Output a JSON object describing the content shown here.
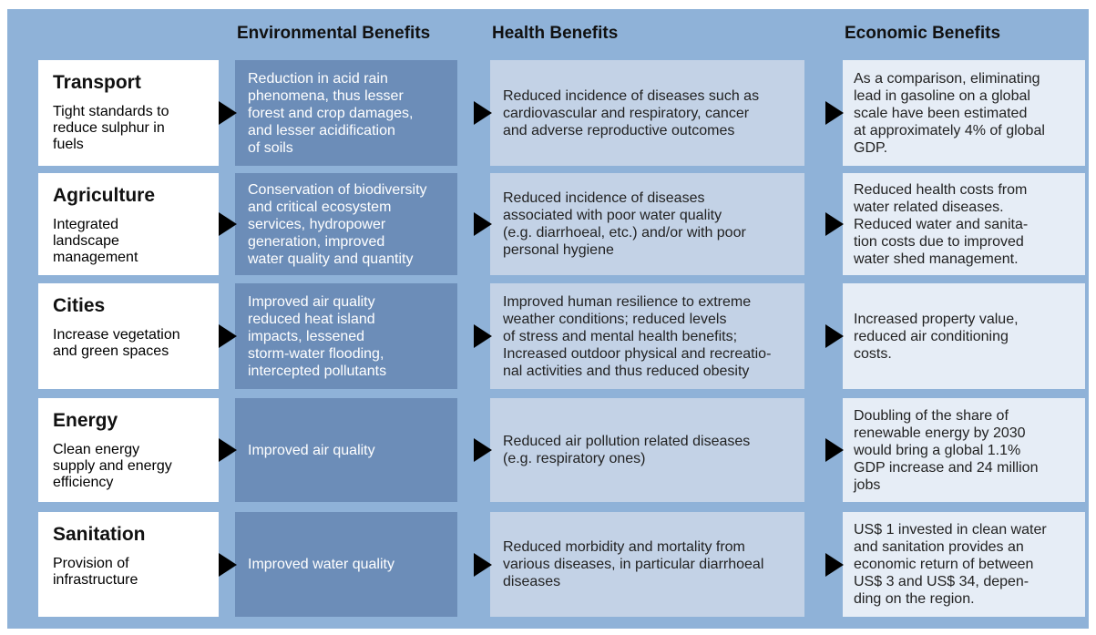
{
  "headers": [
    "Environmental Benefits",
    "Health Benefits",
    "Economic Benefits"
  ],
  "rows": [
    {
      "title": "Transport",
      "subtitle": [
        "Tight standards to",
        "reduce sulphur in",
        "fuels"
      ],
      "environmental": [
        "Reduction in acid rain",
        "phenomena, thus lesser",
        "forest and crop damages,",
        "and lesser acidification",
        "of soils"
      ],
      "health": [
        "Reduced incidence of diseases such as",
        "cardiovascular and respiratory, cancer",
        "and adverse reproductive outcomes"
      ],
      "economic": [
        "As a comparison, eliminating",
        "lead in gasoline on a global",
        "scale have been estimated",
        "at approximately 4% of global",
        "GDP."
      ]
    },
    {
      "title": "Agriculture",
      "subtitle": [
        "Integrated",
        "landscape",
        "management"
      ],
      "environmental": [
        "Conservation of biodiversity",
        "and critical ecosystem",
        "services, hydropower",
        "generation, improved",
        "water quality and quantity"
      ],
      "health": [
        "Reduced incidence of diseases",
        "associated with poor water quality",
        "(e.g. diarrhoeal, etc.) and/or with poor",
        "personal hygiene"
      ],
      "economic": [
        "Reduced health costs from",
        "water related diseases.",
        "Reduced water and sanita-",
        "tion costs due to improved",
        "water shed management."
      ]
    },
    {
      "title": "Cities",
      "subtitle": [
        "Increase vegetation",
        "and green spaces"
      ],
      "environmental": [
        "Improved air quality",
        "reduced heat island",
        "impacts, lessened",
        "storm-water flooding,",
        "intercepted pollutants"
      ],
      "health": [
        "Improved human resilience to extreme",
        "weather conditions; reduced levels",
        "of stress and mental health benefits;",
        "Increased outdoor physical and recreatio-",
        "nal activities and thus reduced obesity"
      ],
      "economic": [
        "Increased property value,",
        "reduced air conditioning",
        "costs."
      ]
    },
    {
      "title": "Energy",
      "subtitle": [
        "Clean energy",
        "supply and energy",
        "efficiency"
      ],
      "environmental": [
        "Improved air quality"
      ],
      "health": [
        "Reduced air pollution related diseases",
        "(e.g. respiratory ones)"
      ],
      "economic": [
        "Doubling of the share of",
        "renewable energy by 2030",
        "would bring a global 1.1%",
        "GDP increase and 24 million",
        "jobs"
      ]
    },
    {
      "title": "Sanitation",
      "subtitle": [
        "Provision of",
        "infrastructure"
      ],
      "environmental": [
        "Improved water quality"
      ],
      "health": [
        "Reduced morbidity and mortality from",
        "various diseases, in particular diarrhoeal",
        "diseases"
      ],
      "economic": [
        "US$ 1 invested in clean water",
        "and sanitation provides an",
        "economic return of between",
        "US$ 3 and US$ 34, depen-",
        "ding on the region."
      ]
    }
  ]
}
